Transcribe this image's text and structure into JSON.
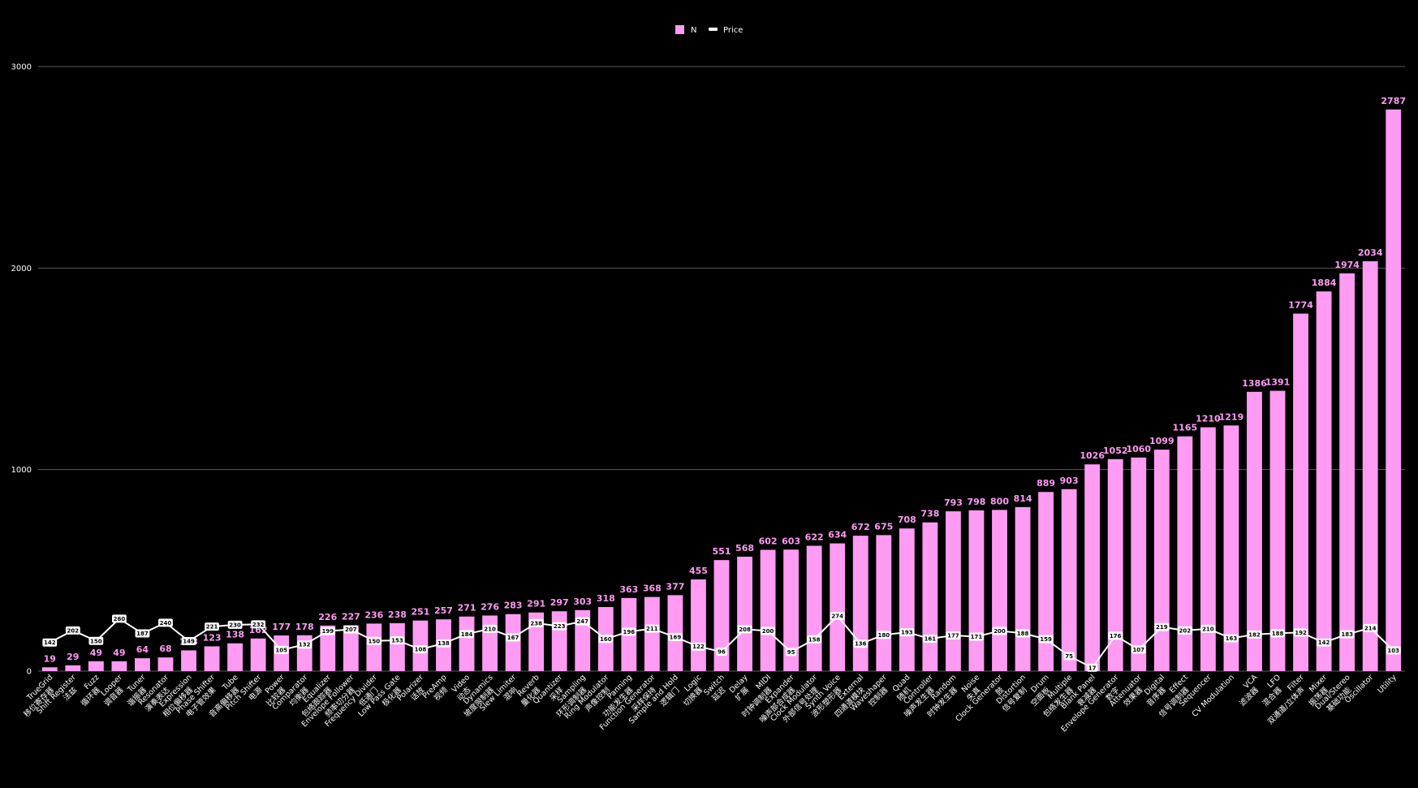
{
  "chart_data": {
    "type": "bar",
    "colors": {
      "bar": "#ff9bf2",
      "bar_label": "#ff9bf2",
      "line": "#ffffff",
      "background": "#000000",
      "grid": "#5a5a5a"
    },
    "legend": {
      "position": "top-center",
      "items": [
        {
          "name": "N",
          "type": "bar"
        },
        {
          "name": "Price",
          "type": "line"
        }
      ]
    },
    "ylim": [
      0,
      3000
    ],
    "yticks": [
      0,
      1000,
      2000,
      3000
    ],
    "grid": true,
    "categories": [
      "TrueGrid\n移位寄存器",
      "Shift Register\n法兹",
      "Fuzz\n循环器",
      "Looper\n调音器",
      "Tuner\n谐振器",
      "Resonator\n演奏表达",
      "Expression\n相位偏移器",
      "Phase Shifter\n电子管效果",
      "Tube\n音高偏移器",
      "Pitch Shifter\n电源",
      "Power\n比较器",
      "Comparator\n均衡器",
      "Equalizer\n包络跟踪器",
      "Envelope Follower\n频率切分器",
      "Frequency Divider\n低通门",
      "Low Pass Gate\n极化器",
      "Polarizer\n话放",
      "PreAmp\n视频",
      "Video\n动态",
      "Dynamics\n坡度限制器",
      "Slew Limiter\n混响",
      "Reverb\n量化器",
      "Quantizer\n采样",
      "Sampling\n环形调制器",
      "Ring Modulator\n声像控制",
      "Panning\n功能发生器",
      "Function Generator\n采样保持",
      "Sample and Hold\n逻辑门",
      "Logic\n切换器",
      "Switch\n延迟",
      "Delay\n扩展",
      "MIDI\n时钟调制器",
      "Expander\n噪声部合成器",
      "Clock Modulator\n外部信号处理",
      "Synth Voice\n波形塑形器",
      "External\n四通道模块",
      "Waveshaper\n控制器",
      "Quad\n随机",
      "Controller\n噪声发生器",
      "Random\n时钟发生器",
      "Noise\n失真",
      "Clock Generator\n鼓",
      "Distortion\n信号复制",
      "Drum\n空面板",
      "Multiple\n包络发生器",
      "Blank Panel\n衰减器",
      "Envelope Generator\n数字",
      "Attenuator\n效果器",
      "Digital\n音序器",
      "Effect\n信号调制器",
      "Sequencer\n",
      "CV Modulation\n",
      "VCA\n滤波器",
      "LFO\n混合器",
      "Filter\n双通道/立体声",
      "Mixer\n振荡器",
      "Dual/Stereo\n基础功能",
      "Oscillator\n",
      "Utility\n"
    ],
    "series": [
      {
        "name": "N",
        "type": "bar",
        "values": [
          19,
          29,
          49,
          49,
          64,
          68,
          103,
          123,
          138,
          162,
          177,
          178,
          226,
          227,
          236,
          238,
          251,
          257,
          271,
          276,
          283,
          291,
          297,
          303,
          318,
          363,
          368,
          377,
          455,
          551,
          568,
          602,
          603,
          622,
          634,
          672,
          675,
          708,
          738,
          793,
          798,
          800,
          814,
          889,
          903,
          1026,
          1052,
          1060,
          1099,
          1165,
          1210,
          1219,
          1386,
          1391,
          1774,
          1884,
          1974,
          2034,
          2787
        ]
      },
      {
        "name": "Price",
        "type": "line",
        "values": [
          142,
          202,
          150,
          260,
          187,
          240,
          149,
          221,
          230,
          232,
          105,
          132,
          199,
          207,
          150,
          153,
          108,
          138,
          184,
          210,
          167,
          238,
          223,
          247,
          160,
          196,
          211,
          169,
          122,
          96,
          208,
          200,
          95,
          158,
          274,
          136,
          180,
          193,
          161,
          177,
          171,
          200,
          188,
          159,
          75,
          17,
          176,
          107,
          219,
          202,
          210,
          163,
          182,
          188,
          192,
          142,
          183,
          214,
          103
        ]
      }
    ]
  },
  "x_labels": [
    [
      "TrueGrid",
      "移位寄存器"
    ],
    [
      "Shift Register",
      "法兹"
    ],
    [
      "Fuzz",
      "循环器"
    ],
    [
      "Looper",
      "调音器"
    ],
    [
      "Tuner",
      "谐振器"
    ],
    [
      "Resonator",
      "演奏表达"
    ],
    [
      "Expression",
      "相位偏移器"
    ],
    [
      "Phase Shifter",
      "电子管效果"
    ],
    [
      "Tube",
      "音高偏移器"
    ],
    [
      "Pitch Shifter",
      "电源"
    ],
    [
      "Power",
      "比较器"
    ],
    [
      "Comparator",
      "均衡器"
    ],
    [
      "Equalizer",
      "包络跟踪器"
    ],
    [
      "Envelope Follower",
      "频率切分器"
    ],
    [
      "Frequency Divider",
      "低通门"
    ],
    [
      "Low Pass Gate",
      "极化器"
    ],
    [
      "Polarizer",
      "话放"
    ],
    [
      "PreAmp",
      "视频"
    ],
    [
      "Video",
      "动态"
    ],
    [
      "Dynamics",
      "坡度限制器"
    ],
    [
      "Slew Limiter",
      "混响"
    ],
    [
      "Reverb",
      "量化器"
    ],
    [
      "Quantizer",
      "采样"
    ],
    [
      "Sampling",
      "环形调制器"
    ],
    [
      "Ring Modulator",
      "声像控制"
    ],
    [
      "Panning",
      "功能发生器"
    ],
    [
      "Function Generator",
      "采样保持"
    ],
    [
      "Sample and Hold",
      "逻辑门"
    ],
    [
      "Logic",
      "切换器"
    ],
    [
      "Switch",
      "延迟"
    ],
    [
      "Delay",
      "扩展"
    ],
    [
      "MIDI",
      "时钟调制器"
    ],
    [
      "Expander",
      "噪声部合成器"
    ],
    [
      "Clock Modulator",
      "外部信号处理"
    ],
    [
      "Synth Voice",
      "波形塑形器"
    ],
    [
      "External",
      "四通道模块"
    ],
    [
      "Waveshaper",
      "控制器"
    ],
    [
      "Quad",
      "随机"
    ],
    [
      "Controller",
      "噪声发生器"
    ],
    [
      "Random",
      "时钟发生器"
    ],
    [
      "Noise",
      "失真"
    ],
    [
      "Clock Generator",
      "鼓"
    ],
    [
      "Distortion",
      "信号复制"
    ],
    [
      "Drum",
      "空面板"
    ],
    [
      "Multiple",
      "包络发生器"
    ],
    [
      "Blank Panel",
      "衰减器"
    ],
    [
      "Envelope Generator",
      "数字"
    ],
    [
      "Attenuator",
      "效果器"
    ],
    [
      "Digital",
      "音序器"
    ],
    [
      "Effect",
      "信号调制器"
    ],
    [
      "Sequencer",
      ""
    ],
    [
      "CV Modulation",
      ""
    ],
    [
      "VCA",
      "滤波器"
    ],
    [
      "LFO",
      "混合器"
    ],
    [
      "Filter",
      "双通道/立体声"
    ],
    [
      "Mixer",
      "振荡器"
    ],
    [
      "Dual/Stereo",
      "基础功能"
    ],
    [
      "Oscillator",
      ""
    ],
    [
      "Utility",
      ""
    ]
  ]
}
